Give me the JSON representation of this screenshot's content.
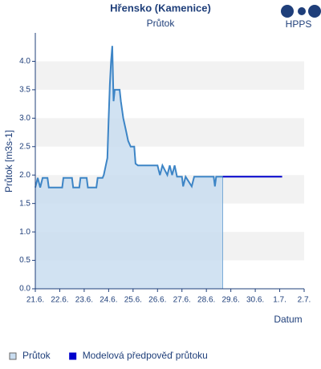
{
  "chart_data": {
    "type": "line",
    "title": "Hřensko (Kamenice)",
    "subtitle": "Průtok",
    "logo": "HPPS",
    "y_label": "Průtok [m3s-1]",
    "x_label": "Datum",
    "xlim": [
      0,
      11
    ],
    "ylim": [
      0,
      4.5
    ],
    "xticks": [
      {
        "value": 0,
        "label": "21.6."
      },
      {
        "value": 1,
        "label": "22.6."
      },
      {
        "value": 2,
        "label": "23.6."
      },
      {
        "value": 3,
        "label": "24.6."
      },
      {
        "value": 4,
        "label": "25.6."
      },
      {
        "value": 5,
        "label": "26.6."
      },
      {
        "value": 6,
        "label": "27.6."
      },
      {
        "value": 7,
        "label": "28.6."
      },
      {
        "value": 8,
        "label": "29.6."
      },
      {
        "value": 9,
        "label": "30.6."
      },
      {
        "value": 10,
        "label": "1.7."
      },
      {
        "value": 11,
        "label": "2.7."
      }
    ],
    "yticks": [
      {
        "value": 0,
        "label": "0.0"
      },
      {
        "value": 0.5,
        "label": "0.5"
      },
      {
        "value": 1,
        "label": "1.0"
      },
      {
        "value": 1.5,
        "label": "1.5"
      },
      {
        "value": 2,
        "label": "2.0"
      },
      {
        "value": 2.5,
        "label": "2.5"
      },
      {
        "value": 3,
        "label": "3.0"
      },
      {
        "value": 3.5,
        "label": "3.5"
      },
      {
        "value": 4,
        "label": "4.0"
      }
    ],
    "band_color": "#f2f2f2",
    "series": [
      {
        "name": "Průtok",
        "color": "#3d85c6",
        "fill": "#c9ddf0",
        "x": [
          0,
          0.1,
          0.2,
          0.3,
          0.5,
          0.55,
          1.1,
          1.15,
          1.5,
          1.55,
          1.8,
          1.85,
          2.1,
          2.15,
          2.5,
          2.55,
          2.75,
          2.8,
          2.95,
          3.0,
          3.05,
          3.1,
          3.15,
          3.2,
          3.25,
          3.45,
          3.5,
          3.6,
          3.7,
          3.8,
          3.9,
          4.05,
          4.1,
          4.2,
          5.0,
          5.1,
          5.2,
          5.4,
          5.5,
          5.6,
          5.7,
          5.8,
          6.0,
          6.05,
          6.15,
          6.4,
          6.5,
          7.3,
          7.35,
          7.4,
          7.67
        ],
        "values": [
          1.78,
          1.95,
          1.78,
          1.95,
          1.95,
          1.78,
          1.78,
          1.95,
          1.95,
          1.78,
          1.78,
          1.95,
          1.95,
          1.78,
          1.78,
          1.95,
          1.95,
          2.0,
          2.3,
          3.0,
          3.6,
          4.0,
          4.27,
          3.3,
          3.5,
          3.5,
          3.3,
          3.0,
          2.8,
          2.6,
          2.5,
          2.5,
          2.2,
          2.17,
          2.17,
          2.0,
          2.17,
          2.0,
          2.17,
          2.0,
          2.17,
          1.97,
          1.97,
          1.8,
          1.97,
          1.8,
          1.97,
          1.97,
          1.8,
          1.97,
          1.97
        ]
      },
      {
        "name": "Modelová předpověď průtoku",
        "color": "#0000cc",
        "x": [
          7.67,
          10.1
        ],
        "values": [
          1.97,
          1.97
        ]
      }
    ]
  }
}
